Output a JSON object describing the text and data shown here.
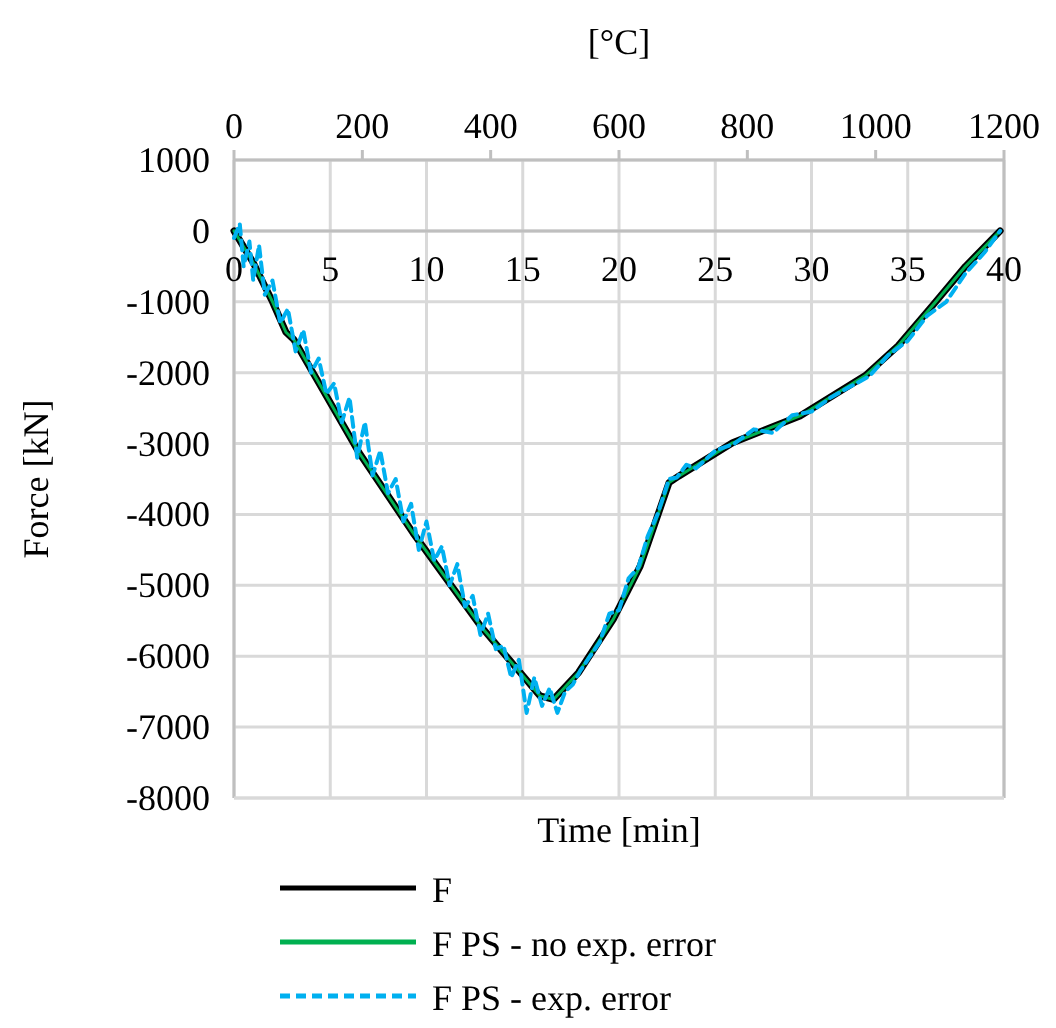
{
  "chart_data": {
    "type": "line",
    "xlabel": "Time [min]",
    "ylabel": "Force [kN]",
    "x2label": "[°C]",
    "xlim": [
      0,
      40
    ],
    "xticks": [
      0,
      5,
      10,
      15,
      20,
      25,
      30,
      35,
      40
    ],
    "x2lim": [
      0,
      1200
    ],
    "x2ticks": [
      0,
      200,
      400,
      600,
      800,
      1000,
      1200
    ],
    "ylim": [
      -8000,
      1000
    ],
    "yticks": [
      -8000,
      -7000,
      -6000,
      -5000,
      -4000,
      -3000,
      -2000,
      -1000,
      0,
      1000
    ],
    "grid": true,
    "legend": "bottom",
    "series": [
      {
        "name": "F",
        "color": "#000000",
        "line_style": "solid",
        "x": [
          0,
          1,
          2,
          2.7,
          3.1,
          5.1,
          6.5,
          9.3,
          12.8,
          15.9,
          16.6,
          17.9,
          19.7,
          21.1,
          22.6,
          23.1,
          25.9,
          29.4,
          32.8,
          34.5,
          36.3,
          38,
          39.8
        ],
        "values": [
          0,
          -450,
          -1000,
          -1430,
          -1530,
          -2470,
          -3130,
          -4260,
          -5570,
          -6560,
          -6610,
          -6230,
          -5480,
          -4730,
          -3550,
          -3460,
          -2990,
          -2610,
          -2040,
          -1620,
          -1050,
          -500,
          0
        ]
      },
      {
        "name": "F PS - no exp. error",
        "color": "#00b050",
        "line_style": "solid",
        "x": [
          0,
          1,
          2,
          2.7,
          3.1,
          5.1,
          6.5,
          9.3,
          12.8,
          15.9,
          16.6,
          17.9,
          19.7,
          21.1,
          22.6,
          23.1,
          25.9,
          29.4,
          32.8,
          34.5,
          36.3,
          38,
          39.8
        ],
        "values": [
          0,
          -450,
          -1000,
          -1430,
          -1530,
          -2470,
          -3130,
          -4260,
          -5570,
          -6560,
          -6610,
          -6230,
          -5480,
          -4730,
          -3550,
          -3460,
          -2990,
          -2610,
          -2040,
          -1620,
          -1050,
          -500,
          0
        ]
      },
      {
        "name": "F PS - exp. error",
        "color": "#00b0f0",
        "line_style": "dashed",
        "x": [
          0,
          0.3,
          0.5,
          0.8,
          1,
          1.3,
          1.6,
          2,
          2.4,
          2.8,
          3.2,
          3.6,
          4,
          4.4,
          4.8,
          5.2,
          5.6,
          6,
          6.4,
          6.8,
          7.2,
          7.6,
          8,
          8.4,
          8.8,
          9.2,
          9.6,
          10,
          10.4,
          10.8,
          11.2,
          11.6,
          12,
          12.4,
          12.8,
          13.2,
          13.6,
          14,
          14.4,
          14.8,
          15.2,
          15.6,
          16,
          16.4,
          16.8,
          17.2,
          17.6,
          18,
          18.5,
          19,
          19.5,
          20,
          20.5,
          21,
          21.5,
          22,
          22.6,
          23,
          23.5,
          24,
          25,
          26,
          27,
          28,
          29,
          30,
          31,
          32,
          33,
          34,
          35,
          36,
          37,
          38,
          39,
          39.8
        ],
        "values": [
          -100,
          100,
          -500,
          -150,
          -700,
          -200,
          -900,
          -700,
          -1300,
          -1100,
          -1700,
          -1400,
          -2000,
          -1800,
          -2300,
          -2150,
          -2700,
          -2350,
          -3200,
          -2700,
          -3450,
          -3100,
          -3700,
          -3500,
          -4100,
          -3850,
          -4500,
          -4100,
          -4650,
          -4450,
          -5000,
          -4700,
          -5300,
          -5150,
          -5700,
          -5400,
          -5900,
          -5850,
          -6300,
          -6050,
          -6800,
          -6300,
          -6700,
          -6450,
          -6800,
          -6500,
          -6400,
          -6200,
          -6000,
          -5800,
          -5400,
          -5350,
          -4900,
          -4750,
          -4300,
          -4000,
          -3500,
          -3480,
          -3300,
          -3350,
          -3100,
          -3000,
          -2800,
          -2850,
          -2600,
          -2550,
          -2350,
          -2200,
          -2050,
          -1750,
          -1550,
          -1200,
          -1000,
          -600,
          -300,
          0
        ]
      }
    ]
  }
}
